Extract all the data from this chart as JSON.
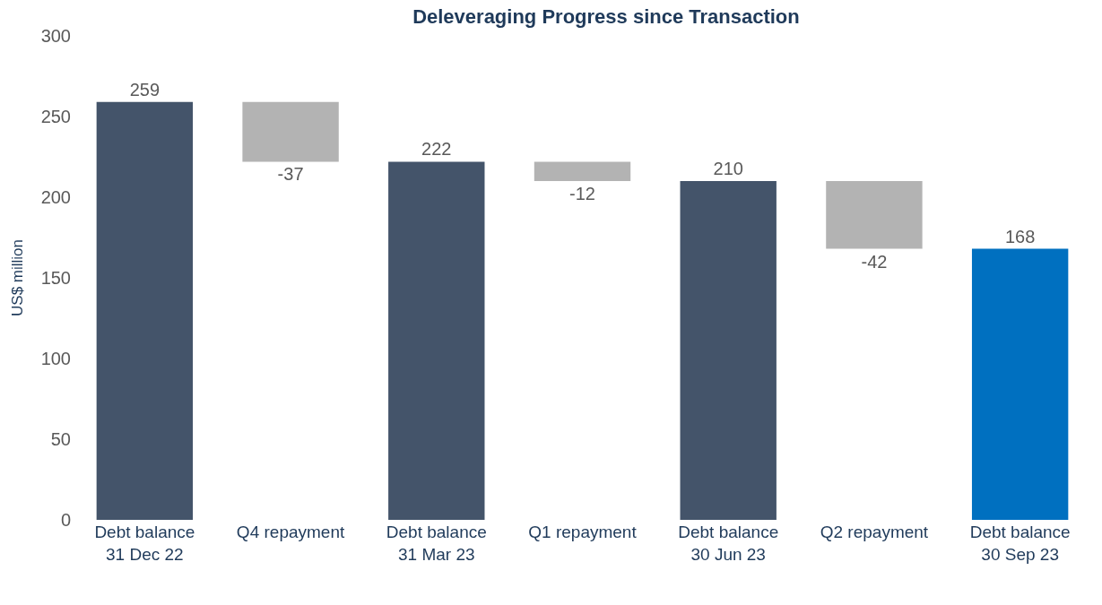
{
  "chart_data": {
    "type": "bar",
    "title": "Deleveraging Progress since Transaction",
    "ylabel": "US$ million",
    "categories": [
      "Debt balance\n31 Dec 22",
      "Q4 repayment",
      "Debt balance\n31 Mar 23",
      "Q1 repayment",
      "Debt balance\n30 Jun 23",
      "Q2 repayment",
      "Debt balance\n30 Sep 23"
    ],
    "values": [
      259,
      -37,
      222,
      -12,
      210,
      -42,
      168
    ],
    "base": [
      0,
      259,
      0,
      222,
      0,
      210,
      0
    ],
    "colors": [
      "#44546a",
      "#b3b3b3",
      "#44546a",
      "#b3b3b3",
      "#44546a",
      "#b3b3b3",
      "#0070c0"
    ],
    "ylim": [
      0,
      300
    ],
    "yticks": [
      0,
      50,
      100,
      150,
      200,
      250,
      300
    ],
    "data_labels": true
  }
}
